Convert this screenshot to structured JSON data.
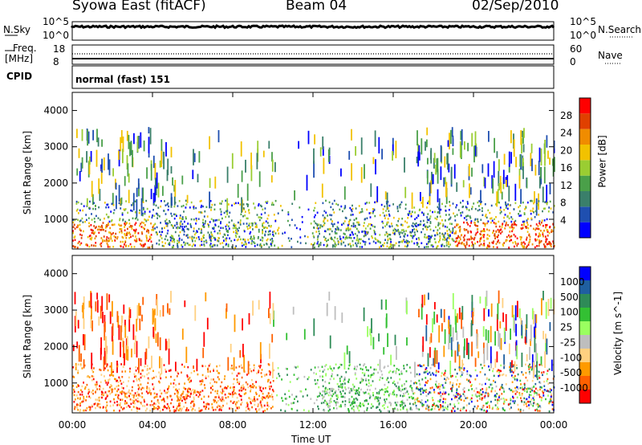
{
  "header": {
    "station": "Syowa East (fitACF)",
    "beam": "Beam 04",
    "date": "02/Sep/2010"
  },
  "noise_panel": {
    "left_label": "N.Sky",
    "right_label": "N.Search",
    "left_ticks": [
      "10^5",
      "10^0"
    ],
    "right_ticks": [
      "10^5",
      "10^0"
    ]
  },
  "freq_panel": {
    "left_label_line1": "Freq.",
    "left_label_line2": "[MHz]",
    "right_label": "Nave",
    "left_ticks": [
      "18",
      "8"
    ],
    "right_ticks": [
      "60",
      "0"
    ]
  },
  "cpid_panel": {
    "label": "CPID",
    "mode": "normal (fast) 151"
  },
  "colors": {
    "power_scale": [
      "#0000ff",
      "#1f4fb0",
      "#3a7f6a",
      "#4aa049",
      "#9acd32",
      "#f2c200",
      "#f08c00",
      "#e04000",
      "#ff0000"
    ],
    "velocity_scale": [
      "#ff0000",
      "#ff6000",
      "#ff9a00",
      "#ffd080",
      "#bebebe",
      "#9aff60",
      "#33c033",
      "#2e8b57",
      "#1f5fa0",
      "#0000ff"
    ]
  },
  "chart_data": [
    {
      "type": "heatmap",
      "name": "power",
      "xlabel": "",
      "ylabel": "Slant Range [km]",
      "colorbar_label": "Power [dB]",
      "colorbar_ticks": [
        "4",
        "8",
        "12",
        "16",
        "20",
        "24",
        "28"
      ],
      "x_ticks": [
        "00:00",
        "04:00",
        "08:00",
        "12:00",
        "16:00",
        "20:00",
        "00:00"
      ],
      "y_ticks": [
        "1000",
        "2000",
        "3000",
        "4000"
      ],
      "xlim": [
        0,
        24
      ],
      "ylim": [
        180,
        4500
      ]
    },
    {
      "type": "heatmap",
      "name": "velocity",
      "xlabel": "Time UT",
      "ylabel": "Slant Range [km]",
      "colorbar_label": "Velocity [m s^-1]",
      "colorbar_ticks": [
        "-1000",
        "-500",
        "-100",
        "-25",
        "25",
        "100",
        "500",
        "1000"
      ],
      "x_ticks": [
        "00:00",
        "04:00",
        "08:00",
        "12:00",
        "16:00",
        "20:00",
        "00:00"
      ],
      "y_ticks": [
        "1000",
        "2000",
        "3000",
        "4000"
      ],
      "xlim": [
        0,
        24
      ],
      "ylim": [
        180,
        4500
      ]
    }
  ]
}
